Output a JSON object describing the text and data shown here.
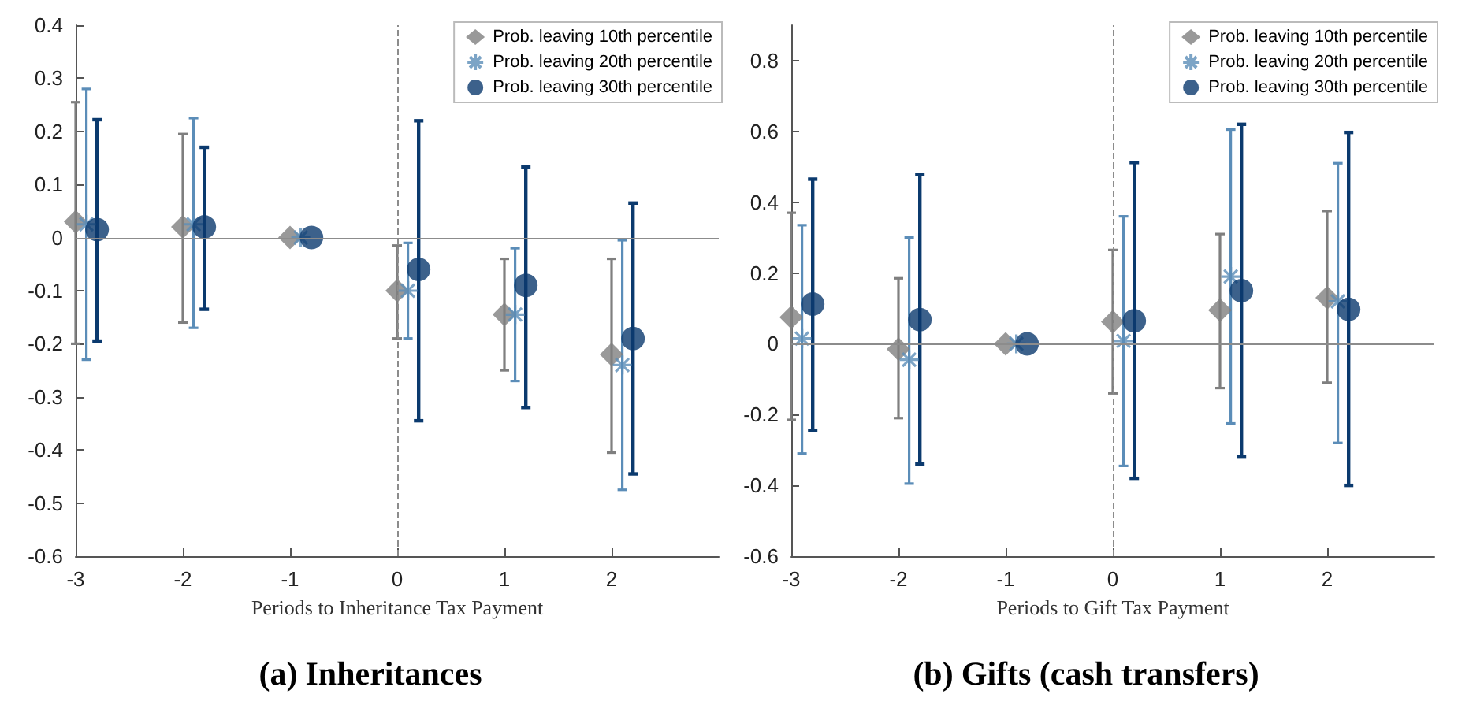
{
  "chart_data": [
    {
      "type": "scatter",
      "title": "(a) Inheritances",
      "xlabel": "Periods to Inheritance Tax Payment",
      "xlim": [
        -3,
        3
      ],
      "xticks": [
        -3,
        -2,
        -1,
        0,
        1,
        2
      ],
      "ylim": [
        -0.6,
        0.4
      ],
      "yticks": [
        -0.6,
        -0.5,
        -0.4,
        -0.3,
        -0.2,
        -0.1,
        0,
        0.1,
        0.2,
        0.3,
        0.4
      ],
      "grid": false,
      "legend": "top right",
      "ref_lines": [
        {
          "axis": "y",
          "value": 0,
          "color": "#8c8c8c",
          "line_style": "solid"
        },
        {
          "axis": "x",
          "value": 0,
          "color": "#8c8c8c",
          "line_style": "dashed"
        }
      ],
      "series": [
        {
          "name": "Prob. leaving 10th percentile",
          "color": "#7f7f7f",
          "marker": "diamond",
          "x": [
            -3,
            -2,
            -1,
            0,
            1,
            2
          ],
          "values": [
            0.03,
            0.02,
            0,
            -0.1,
            -0.145,
            -0.22
          ],
          "errors": [
            [
              -0.2,
              0.255
            ],
            [
              -0.16,
              0.195
            ],
            null,
            [
              -0.19,
              -0.015
            ],
            [
              -0.25,
              -0.04
            ],
            [
              -0.405,
              -0.04
            ]
          ]
        },
        {
          "name": "Prob. leaving 20th percentile",
          "color": "#5b8db8",
          "marker": "cross",
          "x": [
            -2.9,
            -1.9,
            -0.9,
            0.1,
            1.1,
            2.1
          ],
          "values": [
            0.025,
            0.025,
            0,
            -0.1,
            -0.145,
            -0.24
          ],
          "errors": [
            [
              -0.23,
              0.28
            ],
            [
              -0.17,
              0.225
            ],
            null,
            [
              -0.19,
              -0.01
            ],
            [
              -0.27,
              -0.02
            ],
            [
              -0.475,
              -0.005
            ]
          ]
        },
        {
          "name": "Prob. leaving 30th percentile",
          "color": "#0b3a6e",
          "marker": "circle",
          "x": [
            -2.8,
            -1.8,
            -0.8,
            0.2,
            1.2,
            2.2
          ],
          "values": [
            0.015,
            0.02,
            0,
            -0.06,
            -0.09,
            -0.19
          ],
          "errors": [
            [
              -0.195,
              0.222
            ],
            [
              -0.135,
              0.17
            ],
            null,
            [
              -0.345,
              0.22
            ],
            [
              -0.32,
              0.133
            ],
            [
              -0.445,
              0.065
            ]
          ]
        }
      ]
    },
    {
      "type": "scatter",
      "title": "(b) Gifts (cash transfers)",
      "xlabel": "Periods to Gift Tax Payment",
      "xlim": [
        -3,
        3
      ],
      "xticks": [
        -3,
        -2,
        -1,
        0,
        1,
        2
      ],
      "ylim": [
        -0.6,
        0.9
      ],
      "yticks": [
        -0.6,
        -0.4,
        -0.2,
        0,
        0.2,
        0.4,
        0.6,
        0.8
      ],
      "grid": false,
      "legend": "top right",
      "ref_lines": [
        {
          "axis": "y",
          "value": 0,
          "color": "#8c8c8c",
          "line_style": "solid"
        },
        {
          "axis": "x",
          "value": 0,
          "color": "#8c8c8c",
          "line_style": "dashed"
        }
      ],
      "series": [
        {
          "name": "Prob. leaving 10th percentile",
          "color": "#7f7f7f",
          "marker": "diamond",
          "x": [
            -3,
            -2,
            -1,
            0,
            1,
            2
          ],
          "values": [
            0.075,
            -0.015,
            0,
            0.062,
            0.095,
            0.13
          ],
          "errors": [
            [
              -0.215,
              0.37
            ],
            [
              -0.21,
              0.185
            ],
            null,
            [
              -0.14,
              0.265
            ],
            [
              -0.125,
              0.31
            ],
            [
              -0.11,
              0.375
            ]
          ]
        },
        {
          "name": "Prob. leaving 20th percentile",
          "color": "#5b8db8",
          "marker": "cross",
          "x": [
            -2.9,
            -1.9,
            -0.9,
            0.1,
            1.1,
            2.1
          ],
          "values": [
            0.015,
            -0.045,
            0,
            0.008,
            0.19,
            0.12
          ],
          "errors": [
            [
              -0.31,
              0.335
            ],
            [
              -0.395,
              0.3
            ],
            null,
            [
              -0.345,
              0.36
            ],
            [
              -0.225,
              0.605
            ],
            [
              -0.28,
              0.51
            ]
          ]
        },
        {
          "name": "Prob. leaving 30th percentile",
          "color": "#0b3a6e",
          "marker": "circle",
          "x": [
            -2.8,
            -1.8,
            -0.8,
            0.2,
            1.2,
            2.2
          ],
          "values": [
            0.112,
            0.068,
            0,
            0.065,
            0.15,
            0.097
          ],
          "errors": [
            [
              -0.245,
              0.465
            ],
            [
              -0.34,
              0.478
            ],
            null,
            [
              -0.38,
              0.512
            ],
            [
              -0.32,
              0.62
            ],
            [
              -0.4,
              0.597
            ]
          ]
        }
      ]
    }
  ]
}
